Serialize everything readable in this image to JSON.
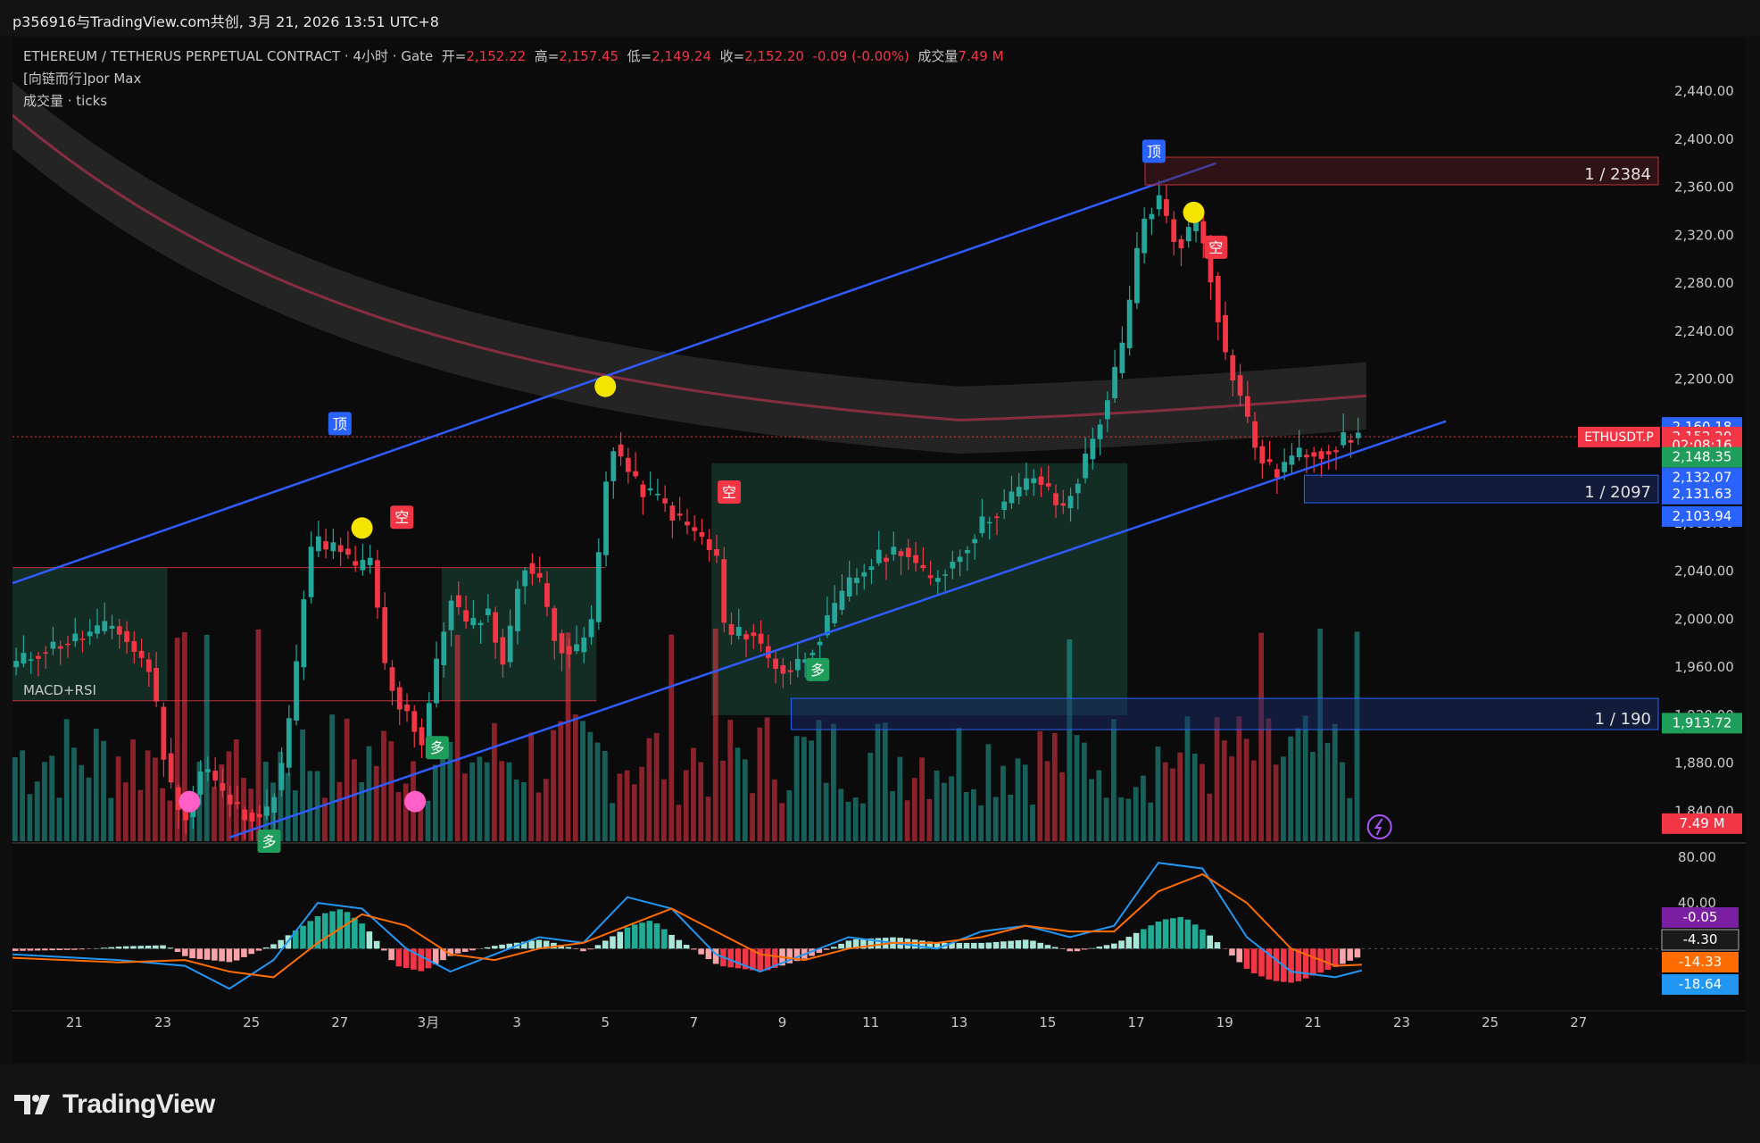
{
  "header": {
    "caption": "p356916与TradingView.com共创, 3月 21, 2026 13:51 UTC+8"
  },
  "legend": {
    "symbol": "ETHEREUM / TETHERUS PERPETUAL CONTRACT · 4小时 · Gate",
    "open_label": "开=",
    "open": "2,152.22",
    "high_label": "高=",
    "high": "2,157.45",
    "low_label": "低=",
    "low": "2,149.24",
    "close_label": "收=",
    "close": "2,152.20",
    "change": "-0.09 (-0.00%)",
    "volume_label": "成交量",
    "volume": "7.49 M",
    "indicator1": "[向链而行]por Max",
    "indicator2": "成交量 · ticks",
    "pane2_title": "MACD+RSI"
  },
  "brand": {
    "name": "TradingView"
  },
  "colors": {
    "up": "#26a69a",
    "down": "#f23645",
    "trend": "#2f5bff",
    "accent_blue": "#2962ff"
  },
  "chart_data": {
    "type": "candlestick",
    "symbol": "ETHUSDT.P",
    "timeframe": "4h",
    "y_ticks": [
      "2,440.00",
      "2,400.00",
      "2,360.00",
      "2,320.00",
      "2,280.00",
      "2,240.00",
      "2,200.00",
      "2,160.00",
      "2,120.00",
      "2,080.00",
      "2,040.00",
      "2,000.00",
      "1,960.00",
      "1,920.00",
      "1,880.00",
      "1,840.00"
    ],
    "ylim": [
      1815,
      2455
    ],
    "x_ticks": [
      "21",
      "23",
      "25",
      "27",
      "3月",
      "3",
      "5",
      "7",
      "9",
      "11",
      "13",
      "15",
      "17",
      "19",
      "21",
      "23",
      "25",
      "27"
    ],
    "x_tick_days": [
      -8,
      -6,
      -4,
      -2,
      0,
      2,
      4,
      6,
      8,
      10,
      12,
      14,
      16,
      18,
      20,
      22,
      24,
      26
    ],
    "xlim": [
      -9.4,
      27.8
    ],
    "path_points": [
      [
        -9.4,
        1960
      ],
      [
        -8.6,
        1975
      ],
      [
        -7.8,
        1985
      ],
      [
        -7.0,
        1995
      ],
      [
        -6.6,
        1975
      ],
      [
        -6.2,
        1958
      ],
      [
        -5.8,
        1865
      ],
      [
        -5.4,
        1835
      ],
      [
        -5.0,
        1880
      ],
      [
        -4.6,
        1855
      ],
      [
        -4.2,
        1840
      ],
      [
        -3.6,
        1835
      ],
      [
        -3.2,
        1880
      ],
      [
        -2.9,
        1960
      ],
      [
        -2.7,
        2030
      ],
      [
        -2.5,
        2070
      ],
      [
        -2.2,
        2055
      ],
      [
        -2.0,
        2065
      ],
      [
        -1.6,
        2040
      ],
      [
        -1.2,
        2050
      ],
      [
        -0.9,
        1960
      ],
      [
        -0.6,
        1930
      ],
      [
        -0.3,
        1920
      ],
      [
        -0.1,
        1890
      ],
      [
        0.2,
        1950
      ],
      [
        0.6,
        2020
      ],
      [
        1.0,
        1990
      ],
      [
        1.4,
        2010
      ],
      [
        1.8,
        1960
      ],
      [
        2.2,
        2050
      ],
      [
        2.6,
        2030
      ],
      [
        3.0,
        1980
      ],
      [
        3.4,
        1970
      ],
      [
        3.8,
        2000
      ],
      [
        4.0,
        2080
      ],
      [
        4.2,
        2150
      ],
      [
        4.5,
        2130
      ],
      [
        4.8,
        2110
      ],
      [
        5.3,
        2100
      ],
      [
        5.8,
        2080
      ],
      [
        6.2,
        2070
      ],
      [
        6.6,
        2050
      ],
      [
        6.8,
        1985
      ],
      [
        7.4,
        1990
      ],
      [
        7.8,
        1965
      ],
      [
        8.2,
        1955
      ],
      [
        8.6,
        1970
      ],
      [
        9.0,
        1990
      ],
      [
        9.6,
        2030
      ],
      [
        10.2,
        2050
      ],
      [
        10.8,
        2060
      ],
      [
        11.4,
        2030
      ],
      [
        12.0,
        2050
      ],
      [
        12.6,
        2080
      ],
      [
        13.2,
        2100
      ],
      [
        13.8,
        2120
      ],
      [
        14.4,
        2090
      ],
      [
        14.8,
        2120
      ],
      [
        15.4,
        2180
      ],
      [
        15.8,
        2230
      ],
      [
        16.2,
        2330
      ],
      [
        16.6,
        2350
      ],
      [
        17.0,
        2310
      ],
      [
        17.5,
        2335
      ],
      [
        17.8,
        2280
      ],
      [
        18.1,
        2220
      ],
      [
        18.4,
        2190
      ],
      [
        18.8,
        2140
      ],
      [
        19.2,
        2120
      ],
      [
        19.6,
        2135
      ],
      [
        20.0,
        2140
      ],
      [
        20.4,
        2140
      ],
      [
        20.8,
        2150
      ],
      [
        21.1,
        2152
      ]
    ],
    "macd_line": [
      [
        -9.4,
        -5
      ],
      [
        -7,
        -10
      ],
      [
        -5.5,
        -15
      ],
      [
        -4.5,
        -35
      ],
      [
        -3.5,
        -10
      ],
      [
        -2.5,
        40
      ],
      [
        -1.5,
        35
      ],
      [
        -0.5,
        0
      ],
      [
        0.5,
        -20
      ],
      [
        1.5,
        -5
      ],
      [
        2.5,
        10
      ],
      [
        3.5,
        5
      ],
      [
        4.5,
        45
      ],
      [
        5.5,
        35
      ],
      [
        6.5,
        -5
      ],
      [
        7.5,
        -20
      ],
      [
        8.5,
        -5
      ],
      [
        9.5,
        10
      ],
      [
        10.5,
        5
      ],
      [
        11.5,
        0
      ],
      [
        12.5,
        15
      ],
      [
        13.5,
        20
      ],
      [
        14.5,
        10
      ],
      [
        15.5,
        20
      ],
      [
        16.5,
        75
      ],
      [
        17.5,
        70
      ],
      [
        18.5,
        10
      ],
      [
        19.5,
        -20
      ],
      [
        20.5,
        -25
      ],
      [
        21.1,
        -19
      ]
    ],
    "signal_line": [
      [
        -9.4,
        -8
      ],
      [
        -7,
        -12
      ],
      [
        -5.5,
        -10
      ],
      [
        -4.5,
        -20
      ],
      [
        -3.5,
        -25
      ],
      [
        -2.5,
        5
      ],
      [
        -1.5,
        30
      ],
      [
        -0.5,
        20
      ],
      [
        0.5,
        -5
      ],
      [
        1.5,
        -10
      ],
      [
        2.5,
        0
      ],
      [
        3.5,
        5
      ],
      [
        4.5,
        20
      ],
      [
        5.5,
        35
      ],
      [
        6.5,
        15
      ],
      [
        7.5,
        -5
      ],
      [
        8.5,
        -10
      ],
      [
        9.5,
        0
      ],
      [
        10.5,
        5
      ],
      [
        11.5,
        5
      ],
      [
        12.5,
        10
      ],
      [
        13.5,
        20
      ],
      [
        14.5,
        15
      ],
      [
        15.5,
        15
      ],
      [
        16.5,
        50
      ],
      [
        17.5,
        65
      ],
      [
        18.5,
        40
      ],
      [
        19.5,
        0
      ],
      [
        20.5,
        -15
      ],
      [
        21.1,
        -14
      ]
    ],
    "macd_hist": [
      [
        -9.4,
        -2
      ],
      [
        -8,
        -1
      ],
      [
        -7,
        2
      ],
      [
        -6,
        3
      ],
      [
        -5.5,
        -8
      ],
      [
        -4.5,
        -12
      ],
      [
        -3.5,
        5
      ],
      [
        -2.5,
        30
      ],
      [
        -2,
        35
      ],
      [
        -1.5,
        20
      ],
      [
        -0.8,
        -15
      ],
      [
        -0.2,
        -20
      ],
      [
        0.5,
        -5
      ],
      [
        1.5,
        3
      ],
      [
        2.5,
        8
      ],
      [
        3.5,
        -3
      ],
      [
        4.5,
        20
      ],
      [
        5,
        25
      ],
      [
        5.5,
        10
      ],
      [
        6.5,
        -15
      ],
      [
        7.5,
        -20
      ],
      [
        8.5,
        -8
      ],
      [
        9.5,
        8
      ],
      [
        10.5,
        10
      ],
      [
        11.5,
        5
      ],
      [
        12.5,
        5
      ],
      [
        13.5,
        8
      ],
      [
        14.5,
        -3
      ],
      [
        15.5,
        5
      ],
      [
        16.5,
        25
      ],
      [
        17,
        28
      ],
      [
        17.5,
        15
      ],
      [
        18.5,
        -20
      ],
      [
        19,
        -28
      ],
      [
        19.5,
        -30
      ],
      [
        20.5,
        -15
      ],
      [
        21.1,
        -5
      ]
    ],
    "pane2_ticks": [
      "80.00",
      "40.00"
    ],
    "pane2_ylim": [
      -45,
      90
    ],
    "price_labels": [
      "2,160.18",
      "2,152.20",
      "02:08:16",
      "2,148.35",
      "2,132.07",
      "2,131.63",
      "2,103.94",
      "1,913.72",
      "7.49 M"
    ],
    "last_symbol_tag": "ETHUSDT.P",
    "pane2_labels": [
      "-0.05",
      "-4.30",
      "-14.33",
      "-18.64"
    ],
    "zones": [
      {
        "label": "1 / 2384",
        "x0": 16.2,
        "x1": 27.8,
        "y0": 2362,
        "y1": 2385
      },
      {
        "label": "1 / 2097",
        "x0": 19.8,
        "x1": 27.8,
        "y0": 2097,
        "y1": 2120
      },
      {
        "label": "1 / 190",
        "x0": 8.2,
        "x1": 27.8,
        "y0": 1908,
        "y1": 1934
      }
    ],
    "trendlines": [
      {
        "x0": -9.4,
        "y0": 2030,
        "x1": 17.8,
        "y1": 2380
      },
      {
        "x0": -4.5,
        "y0": 1818,
        "x1": 23.0,
        "y1": 2165
      }
    ],
    "markers": [
      {
        "text": "顶",
        "x": -2.0,
        "y": 2163
      },
      {
        "text": "顶",
        "x": 16.4,
        "y": 2390
      },
      {
        "text": "空",
        "x": -0.6,
        "y": 2085
      },
      {
        "text": "空",
        "x": 6.8,
        "y": 2106
      },
      {
        "text": "空",
        "x": 17.8,
        "y": 2310
      },
      {
        "text": "多",
        "x": 0.2,
        "y": 1893
      },
      {
        "text": "多",
        "x": 8.8,
        "y": 1958
      },
      {
        "text": "多",
        "x": -3.6,
        "y": 1815
      }
    ],
    "yellow_dots": [
      [
        -1.5,
        2076
      ],
      [
        4.0,
        2194
      ],
      [
        17.3,
        2339
      ]
    ],
    "pink_dots": [
      [
        -5.4,
        1848
      ],
      [
        -0.3,
        1848
      ]
    ]
  }
}
